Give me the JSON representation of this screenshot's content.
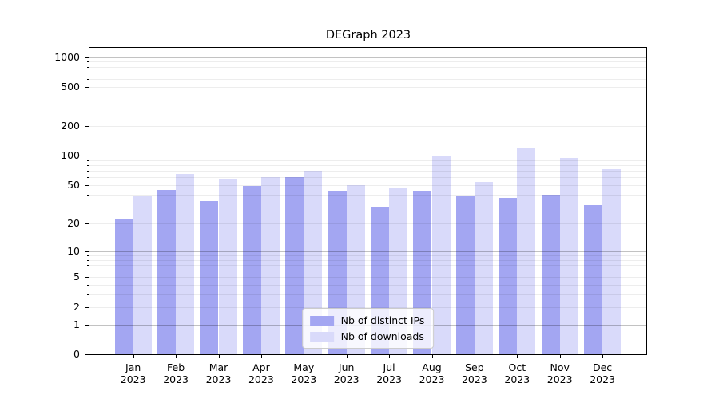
{
  "chart_data": {
    "type": "bar",
    "title": "DEGraph 2023",
    "categories": [
      "Jan",
      "Feb",
      "Mar",
      "Apr",
      "May",
      "Jun",
      "Jul",
      "Aug",
      "Sep",
      "Oct",
      "Nov",
      "Dec"
    ],
    "x_tick_year": "2023",
    "series": [
      {
        "name": "Nb of distinct IPs",
        "color": "#a3a6f2",
        "values": [
          22,
          45,
          34,
          49,
          60,
          44,
          30,
          44,
          39,
          37,
          40,
          31
        ]
      },
      {
        "name": "Nb of downloads",
        "color": "#d9dafa",
        "values": [
          39,
          65,
          58,
          61,
          70,
          50,
          47,
          100,
          54,
          120,
          95,
          73
        ]
      }
    ],
    "y_ticks": [
      0,
      1,
      2,
      5,
      10,
      20,
      50,
      100,
      200,
      500,
      1000
    ],
    "y_minor_ticks": [
      3,
      4,
      6,
      7,
      8,
      9,
      30,
      40,
      60,
      70,
      80,
      90,
      300,
      400,
      600,
      700,
      800,
      900
    ],
    "y_major_gridlines": [
      1,
      10,
      100,
      1000
    ],
    "scale": "log1p",
    "ylim": [
      0,
      1280
    ],
    "grid": true,
    "legend_position": "lower center"
  }
}
